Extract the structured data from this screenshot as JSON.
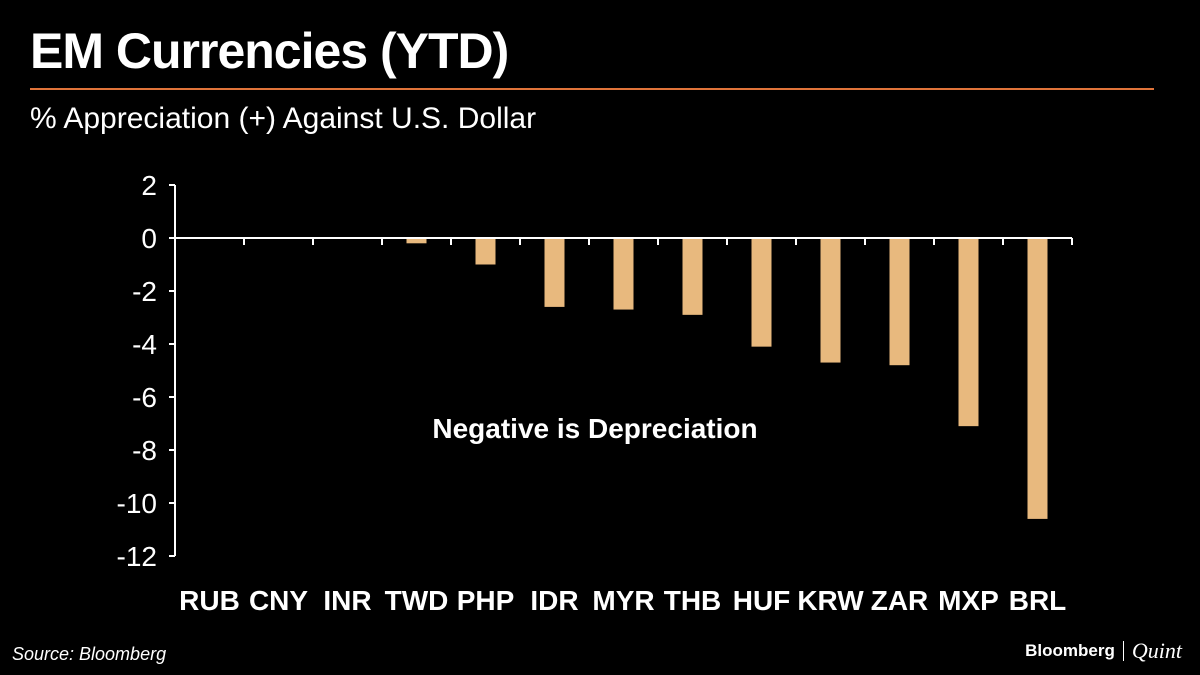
{
  "header": {
    "title": "EM Currencies (YTD)",
    "subtitle": "% Appreciation (+) Against U.S. Dollar"
  },
  "footer": {
    "source": "Source: Bloomberg",
    "brand": "Bloomberg",
    "brand_sub": "Quint"
  },
  "colors": {
    "background": "#000000",
    "bar": "#e8b97e",
    "accent_rule": "#e0743a",
    "text": "#ffffff"
  },
  "chart_data": {
    "type": "bar",
    "title": "EM Currencies (YTD)",
    "subtitle": "% Appreciation (+) Against U.S. Dollar",
    "categories": [
      "RUB",
      "CNY",
      "INR",
      "TWD",
      "PHP",
      "IDR",
      "MYR",
      "THB",
      "HUF",
      "KRW",
      "ZAR",
      "MXP",
      "BRL"
    ],
    "values": [
      0,
      0,
      0,
      -0.2,
      -1.0,
      -2.6,
      -2.7,
      -2.9,
      -4.1,
      -4.7,
      -4.8,
      -7.1,
      -10.6
    ],
    "ylim": [
      -12,
      2
    ],
    "yticks": [
      2,
      0,
      -2,
      -4,
      -6,
      -8,
      -10,
      -12
    ],
    "annotation": "Negative is Depreciation",
    "grid": false,
    "legend": "none"
  }
}
